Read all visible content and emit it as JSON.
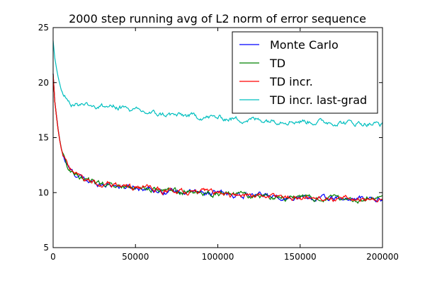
{
  "chart_data": {
    "type": "line",
    "title": "2000 step running avg of L2 norm of error sequence",
    "xlabel": "",
    "ylabel": "",
    "xlim": [
      0,
      200000
    ],
    "ylim": [
      5,
      25
    ],
    "xticks": [
      0,
      50000,
      100000,
      150000,
      200000
    ],
    "yticks": [
      5,
      10,
      15,
      20,
      25
    ],
    "grid": false,
    "legend_position": "top-right",
    "series": [
      {
        "name": "Monte Carlo",
        "color": "#0000ff",
        "x": [
          0,
          1000,
          2000,
          3000,
          4000,
          5000,
          6000,
          8000,
          10000,
          12000,
          15000,
          20000,
          25000,
          30000,
          35000,
          40000,
          45000,
          50000,
          55000,
          60000,
          65000,
          70000,
          75000,
          80000,
          90000,
          100000,
          110000,
          120000,
          130000,
          140000,
          150000,
          160000,
          170000,
          180000,
          190000,
          200000
        ],
        "values": [
          20.8,
          18.3,
          17.0,
          15.8,
          14.8,
          14.0,
          13.4,
          12.6,
          12.1,
          11.8,
          11.5,
          11.1,
          10.9,
          10.8,
          10.75,
          10.6,
          10.5,
          10.5,
          10.45,
          10.3,
          10.2,
          10.15,
          10.1,
          10.05,
          10.0,
          9.95,
          9.8,
          9.75,
          9.7,
          9.6,
          9.55,
          9.5,
          9.45,
          9.4,
          9.4,
          9.4
        ]
      },
      {
        "name": "TD",
        "color": "#008000",
        "x": [
          0,
          1000,
          2000,
          3000,
          4000,
          5000,
          6000,
          8000,
          10000,
          12000,
          15000,
          20000,
          25000,
          30000,
          35000,
          40000,
          45000,
          50000,
          55000,
          60000,
          65000,
          70000,
          75000,
          80000,
          90000,
          100000,
          110000,
          120000,
          130000,
          140000,
          150000,
          160000,
          170000,
          180000,
          190000,
          200000
        ],
        "values": [
          20.8,
          18.3,
          17.0,
          15.8,
          14.8,
          14.0,
          13.4,
          12.6,
          12.1,
          11.8,
          11.5,
          11.1,
          10.9,
          10.8,
          10.75,
          10.6,
          10.5,
          10.5,
          10.45,
          10.3,
          10.2,
          10.15,
          10.1,
          10.05,
          10.0,
          9.95,
          9.8,
          9.75,
          9.7,
          9.6,
          9.55,
          9.5,
          9.45,
          9.4,
          9.4,
          9.4
        ]
      },
      {
        "name": "TD incr.",
        "color": "#ff0000",
        "x": [
          0,
          1000,
          2000,
          3000,
          4000,
          5000,
          6000,
          8000,
          10000,
          12000,
          15000,
          20000,
          25000,
          30000,
          35000,
          40000,
          45000,
          50000,
          55000,
          60000,
          65000,
          70000,
          75000,
          80000,
          90000,
          100000,
          110000,
          120000,
          130000,
          140000,
          150000,
          160000,
          170000,
          180000,
          190000,
          200000
        ],
        "values": [
          20.8,
          18.3,
          17.0,
          15.8,
          14.8,
          14.0,
          13.4,
          12.6,
          12.1,
          11.8,
          11.5,
          11.1,
          10.9,
          10.8,
          10.75,
          10.6,
          10.5,
          10.5,
          10.45,
          10.3,
          10.2,
          10.15,
          10.1,
          10.05,
          10.0,
          9.95,
          9.8,
          9.75,
          9.7,
          9.6,
          9.55,
          9.5,
          9.45,
          9.4,
          9.4,
          9.4
        ]
      },
      {
        "name": "TD incr. last-grad",
        "color": "#00bfbf",
        "x": [
          0,
          1000,
          2000,
          3000,
          4000,
          5000,
          6000,
          8000,
          10000,
          12000,
          15000,
          20000,
          25000,
          30000,
          35000,
          40000,
          45000,
          50000,
          55000,
          60000,
          65000,
          70000,
          75000,
          80000,
          90000,
          100000,
          110000,
          120000,
          130000,
          140000,
          150000,
          160000,
          170000,
          180000,
          190000,
          200000
        ],
        "values": [
          23.8,
          22.2,
          21.3,
          20.5,
          19.9,
          19.3,
          19.0,
          18.6,
          18.3,
          18.1,
          18.0,
          18.1,
          17.9,
          17.8,
          17.85,
          17.8,
          17.6,
          17.4,
          17.3,
          17.2,
          17.1,
          17.1,
          17.0,
          17.0,
          16.9,
          16.8,
          16.7,
          16.65,
          16.6,
          16.6,
          16.5,
          16.45,
          16.4,
          16.35,
          16.3,
          16.2
        ]
      }
    ]
  }
}
